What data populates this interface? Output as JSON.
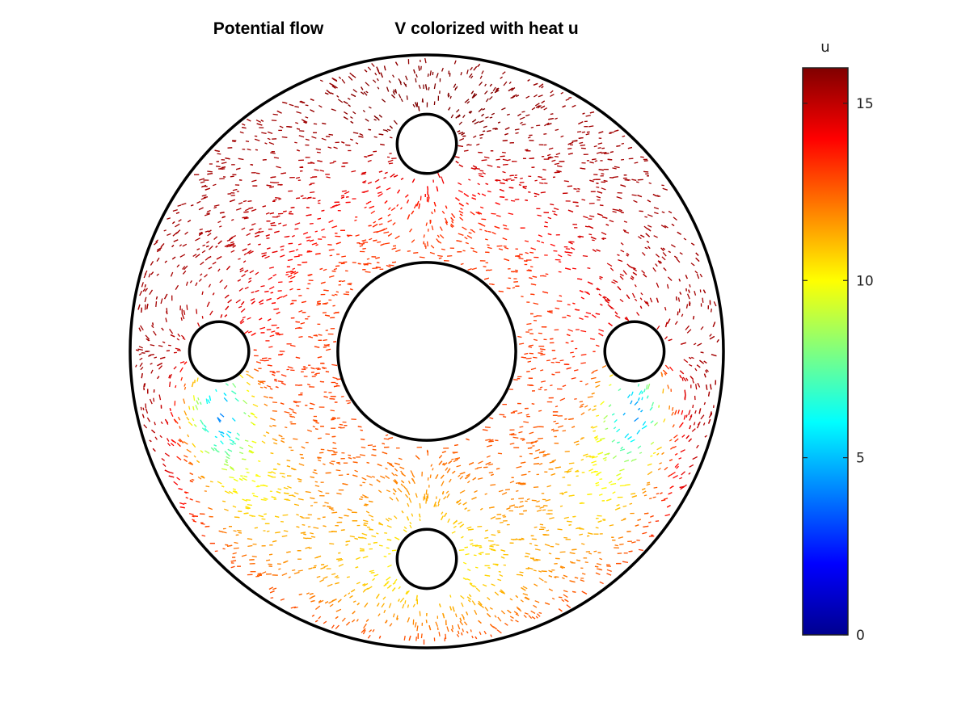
{
  "chart_data": {
    "type": "quiver",
    "title_left": "Potential flow",
    "title_right": "V colorized with heat u",
    "colorbar": {
      "label": "u",
      "ticks": [
        "0",
        "5",
        "10",
        "15"
      ],
      "tick_values": [
        0,
        5,
        10,
        15
      ],
      "range": [
        0,
        16
      ],
      "colormap": "jet"
    },
    "domain": {
      "shape": "annulus with holes",
      "outer_circle": {
        "cx": 0,
        "cy": 0,
        "r": 1.0
      },
      "inner_circle": {
        "cx": 0,
        "cy": 0,
        "r": 0.3
      },
      "holes": [
        {
          "name": "top",
          "cx": 0,
          "cy": 0.7,
          "r": 0.1
        },
        {
          "name": "left",
          "cx": -0.7,
          "cy": 0,
          "r": 0.1
        },
        {
          "name": "right",
          "cx": 0.7,
          "cy": 0,
          "r": 0.1
        },
        {
          "name": "bottom",
          "cx": 0,
          "cy": -0.7,
          "r": 0.1
        }
      ]
    },
    "heat_regions": [
      {
        "region": "outer ring near top",
        "u_approx": 15
      },
      {
        "region": "around inner circle",
        "u_approx": 13
      },
      {
        "region": "lower middle near bottom hole",
        "u_approx": 11
      },
      {
        "region": "below left/right holes",
        "u_approx": 4
      }
    ],
    "grid": false,
    "axes_visible": false
  }
}
